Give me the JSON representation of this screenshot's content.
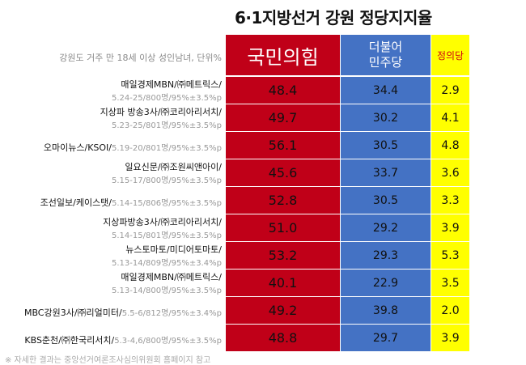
{
  "title": "6·1지방선거 강원 정당지지율",
  "subnote": "강원도 거주 만 18세 이상 성인남녀, 단위%",
  "footnote": "※ 자세한 결과는 중앙선거여론조사심의위원회 홈페이지 참고",
  "colors": {
    "ppp": "#c00018",
    "dem": "#4472c4",
    "jus": "#ffff00",
    "jus_text": "#d00010"
  },
  "chart_data": {
    "type": "table",
    "title": "6·1지방선거 강원 정당지지율",
    "unit": "%",
    "columns": [
      "국민의힘",
      "더불어\n민주당",
      "정의당"
    ],
    "rows": [
      {
        "source": "매일경제MBN/㈜메트릭스/",
        "meta": "5.24-25/800명/95%±3.5%p",
        "inline": false,
        "values": [
          48.4,
          34.4,
          2.9
        ]
      },
      {
        "source": "지상파 방송3사/㈜코리아리서치/",
        "meta": "5.23-25/801명/95%±3.5%p",
        "inline": false,
        "values": [
          49.7,
          30.2,
          4.1
        ]
      },
      {
        "source": "오마이뉴스/KSOI/",
        "meta": "5.19-20/801명/95%±3.5%p",
        "inline": true,
        "values": [
          56.1,
          30.5,
          4.8
        ]
      },
      {
        "source": "일요신문/㈜조원씨앤아이/",
        "meta": "5.15-17/800명/95%±3.5%p",
        "inline": false,
        "values": [
          45.6,
          33.7,
          3.6
        ]
      },
      {
        "source": "조선일보/케이스탯/",
        "meta": "5.14-15/806명/95%±3.5%p",
        "inline": true,
        "values": [
          52.8,
          30.5,
          3.3
        ]
      },
      {
        "source": "지상파방송3사/㈜코리아리서치/",
        "meta": "5.14-15/801명/95%±3.5%p",
        "inline": false,
        "values": [
          51.0,
          29.2,
          3.9
        ]
      },
      {
        "source": "뉴스토마토/미디어토마토/",
        "meta": "5.13-14/809명/95%±3.4%p",
        "inline": false,
        "values": [
          53.2,
          29.3,
          5.3
        ]
      },
      {
        "source": "매일경제MBN/㈜메트릭스/",
        "meta": "5.13-14/800명/95%±3.5%p",
        "inline": false,
        "values": [
          40.1,
          22.9,
          3.5
        ]
      },
      {
        "source": "MBC강원3사/㈜리얼미터/",
        "meta": "5.5-6/812명/95%±3.4%p",
        "inline": true,
        "values": [
          49.2,
          39.8,
          2.0
        ]
      },
      {
        "source": "KBS춘천/㈜한국리서치/",
        "meta": "5.3-4,6/800명/95%±3.5%p",
        "inline": true,
        "values": [
          48.8,
          29.7,
          3.9
        ]
      }
    ]
  }
}
